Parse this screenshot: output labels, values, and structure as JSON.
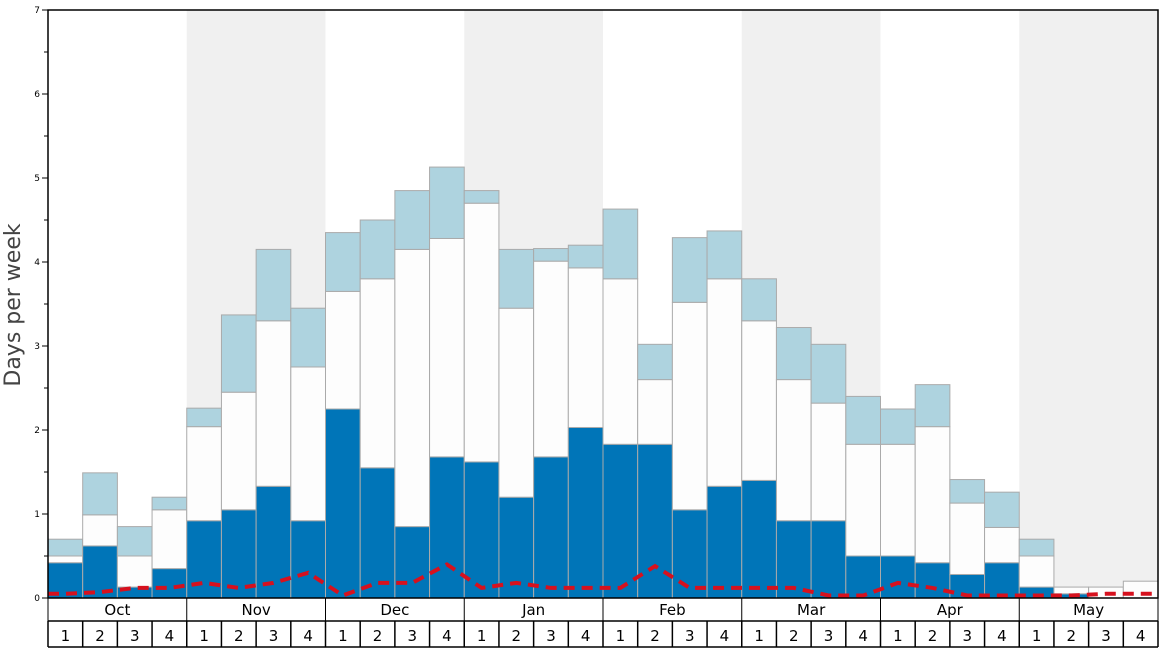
{
  "chart_data": {
    "type": "bar",
    "ylabel": "Days per week",
    "ylim": [
      0,
      7
    ],
    "y_ticks": [
      "0",
      "1",
      "2",
      "3",
      "4",
      "5",
      "6",
      "7"
    ],
    "months": [
      "Oct",
      "Nov",
      "Dec",
      "Jan",
      "Feb",
      "Mar",
      "Apr",
      "May"
    ],
    "week_labels": [
      "1",
      "2",
      "3",
      "4"
    ],
    "colors": {
      "dark": "#0075b8",
      "white": "#fdfdfd",
      "light": "#aed3df",
      "line": "#d6111e",
      "band": "#f0f0f0",
      "bar_border": "#aaaaaa"
    },
    "series": [
      {
        "segment": "dark-blue",
        "values": [
          0.42,
          0.62,
          0.13,
          0.35,
          0.92,
          1.05,
          1.33,
          0.92,
          2.25,
          1.55,
          0.85,
          1.68,
          1.62,
          1.2,
          1.68,
          2.03,
          1.83,
          1.83,
          1.05,
          1.33,
          1.4,
          0.92,
          0.92,
          0.5,
          0.5,
          0.42,
          0.28,
          0.42,
          0.13,
          0.05,
          0,
          0
        ]
      },
      {
        "segment": "white",
        "values": [
          0.08,
          0.37,
          0.37,
          0.7,
          1.12,
          1.4,
          1.97,
          1.83,
          1.4,
          2.25,
          3.3,
          2.6,
          3.08,
          2.25,
          2.33,
          1.9,
          1.97,
          0.77,
          2.47,
          2.47,
          1.9,
          1.68,
          1.4,
          1.33,
          1.33,
          1.62,
          0.85,
          0.42,
          0.37,
          0.08,
          0.13,
          0.2
        ]
      },
      {
        "segment": "light-blue",
        "values": [
          0.2,
          0.5,
          0.35,
          0.15,
          0.22,
          0.92,
          0.85,
          0.7,
          0.7,
          0.7,
          0.7,
          0.85,
          0.15,
          0.7,
          0.15,
          0.27,
          0.83,
          0.42,
          0.77,
          0.57,
          0.5,
          0.62,
          0.7,
          0.57,
          0.42,
          0.5,
          0.28,
          0.42,
          0.2,
          0,
          0,
          0
        ]
      }
    ],
    "line": {
      "style": "dashed",
      "values": [
        0.05,
        0.07,
        0.12,
        0.12,
        0.18,
        0.12,
        0.18,
        0.3,
        0.03,
        0.18,
        0.18,
        0.4,
        0.12,
        0.18,
        0.12,
        0.12,
        0.12,
        0.38,
        0.12,
        0.12,
        0.12,
        0.12,
        0.03,
        0.03,
        0.18,
        0.12,
        0.03,
        0.03,
        0.03,
        0.03,
        0.05,
        0.05
      ]
    }
  }
}
